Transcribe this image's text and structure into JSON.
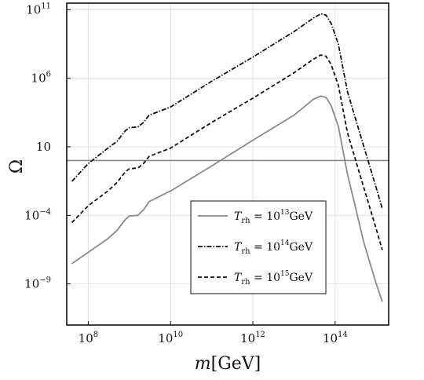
{
  "chart_data": {
    "type": "line",
    "title": "",
    "xlabel": "m[GeV]",
    "xlabel_var": "m",
    "xlabel_unit": "[GeV]",
    "ylabel": "Ω",
    "x_scale": "log",
    "y_scale": "log",
    "xlim": [
      30000000.0,
      2000000000000000.0
    ],
    "ylim": [
      1e-12,
      300000000000.0
    ],
    "grid": true,
    "legend_position": "lower-right",
    "x_ticks": [
      {
        "value": 100000000.0,
        "base": "10",
        "exp": "8"
      },
      {
        "value": 10000000000.0,
        "base": "10",
        "exp": "10"
      },
      {
        "value": 1000000000000.0,
        "base": "10",
        "exp": "12"
      },
      {
        "value": 100000000000000.0,
        "base": "10",
        "exp": "14"
      }
    ],
    "y_ticks": [
      {
        "value": 1e-09,
        "base": "10",
        "exp": "−9"
      },
      {
        "value": 0.0001,
        "base": "10",
        "exp": "−4"
      },
      {
        "value": 10,
        "base": "10",
        "exp": ""
      },
      {
        "value": 1000000.0,
        "base": "10",
        "exp": "6"
      },
      {
        "value": 100000000000.0,
        "base": "10",
        "exp": "11"
      }
    ],
    "hline": {
      "y": 1.0,
      "color": "#8a8a8a"
    },
    "series": [
      {
        "name": "T_rh = 10^13 GeV",
        "label_T": "T",
        "label_sub": "rh",
        "label_eq": " = 10",
        "label_exp": "13",
        "label_unit": "GeV",
        "style": "solid",
        "color": "#8a8a8a",
        "points": [
          [
            40000000.0,
            3e-08
          ],
          [
            100000000.0,
            2e-07
          ],
          [
            300000000.0,
            2e-06
          ],
          [
            500000000.0,
            8e-06
          ],
          [
            800000000.0,
            5e-05
          ],
          [
            1000000000.0,
            9e-05
          ],
          [
            1600000000.0,
            0.0001
          ],
          [
            2200000000.0,
            0.00025
          ],
          [
            3000000000.0,
            0.001
          ],
          [
            10000000000.0,
            0.006
          ],
          [
            100000000000.0,
            0.4
          ],
          [
            1000000000000.0,
            30
          ],
          [
            10000000000000.0,
            2000
          ],
          [
            30000000000000.0,
            30000.0
          ],
          [
            45000000000000.0,
            50000.0
          ],
          [
            60000000000000.0,
            40000.0
          ],
          [
            80000000000000.0,
            10000.0
          ],
          [
            120000000000000.0,
            300
          ],
          [
            200000000000000.0,
            0.1
          ],
          [
            500000000000000.0,
            1e-06
          ],
          [
            1000000000000000.0,
            1e-09
          ],
          [
            1400000000000000.0,
            5e-11
          ]
        ]
      },
      {
        "name": "T_rh = 10^14 GeV",
        "label_T": "T",
        "label_sub": "rh",
        "label_eq": " = 10",
        "label_exp": "14",
        "label_unit": "GeV",
        "style": "dashdot",
        "color": "#111111",
        "points": [
          [
            40000000.0,
            0.03
          ],
          [
            100000000.0,
            0.6
          ],
          [
            300000000.0,
            8
          ],
          [
            500000000.0,
            25
          ],
          [
            800000000.0,
            150
          ],
          [
            1000000000.0,
            250
          ],
          [
            1600000000.0,
            280
          ],
          [
            2200000000.0,
            600
          ],
          [
            3000000000.0,
            2000
          ],
          [
            10000000000.0,
            8000.0
          ],
          [
            100000000000.0,
            600000.0
          ],
          [
            1000000000000.0,
            35000000.0
          ],
          [
            10000000000000.0,
            2500000000.0
          ],
          [
            30000000000000.0,
            25000000000.0
          ],
          [
            45000000000000.0,
            50000000000.0
          ],
          [
            60000000000000.0,
            40000000000.0
          ],
          [
            80000000000000.0,
            10000000000.0
          ],
          [
            120000000000000.0,
            300000000.0
          ],
          [
            200000000000000.0,
            100000.0
          ],
          [
            500000000000000.0,
            10
          ],
          [
            1000000000000000.0,
            0.01
          ],
          [
            1400000000000000.0,
            0.0003
          ]
        ]
      },
      {
        "name": "T_rh = 10^15 GeV",
        "label_T": "T",
        "label_sub": "rh",
        "label_eq": " = 10",
        "label_exp": "15",
        "label_unit": "GeV",
        "style": "dashed",
        "color": "#111111",
        "points": [
          [
            40000000.0,
            3e-05
          ],
          [
            100000000.0,
            0.0005
          ],
          [
            300000000.0,
            0.006
          ],
          [
            500000000.0,
            0.025
          ],
          [
            800000000.0,
            0.15
          ],
          [
            1000000000.0,
            0.25
          ],
          [
            1600000000.0,
            0.28
          ],
          [
            2200000000.0,
            0.6
          ],
          [
            3000000000.0,
            2
          ],
          [
            10000000000.0,
            8
          ],
          [
            100000000000.0,
            600
          ],
          [
            1000000000000.0,
            35000.0
          ],
          [
            10000000000000.0,
            2500000.0
          ],
          [
            30000000000000.0,
            25000000.0
          ],
          [
            45000000000000.0,
            50000000.0
          ],
          [
            60000000000000.0,
            40000000.0
          ],
          [
            80000000000000.0,
            10000000.0
          ],
          [
            120000000000000.0,
            300000.0
          ],
          [
            200000000000000.0,
            100
          ],
          [
            500000000000000.0,
            0.01
          ],
          [
            1000000000000000.0,
            1e-05
          ],
          [
            1400000000000000.0,
            3e-07
          ]
        ]
      }
    ]
  }
}
